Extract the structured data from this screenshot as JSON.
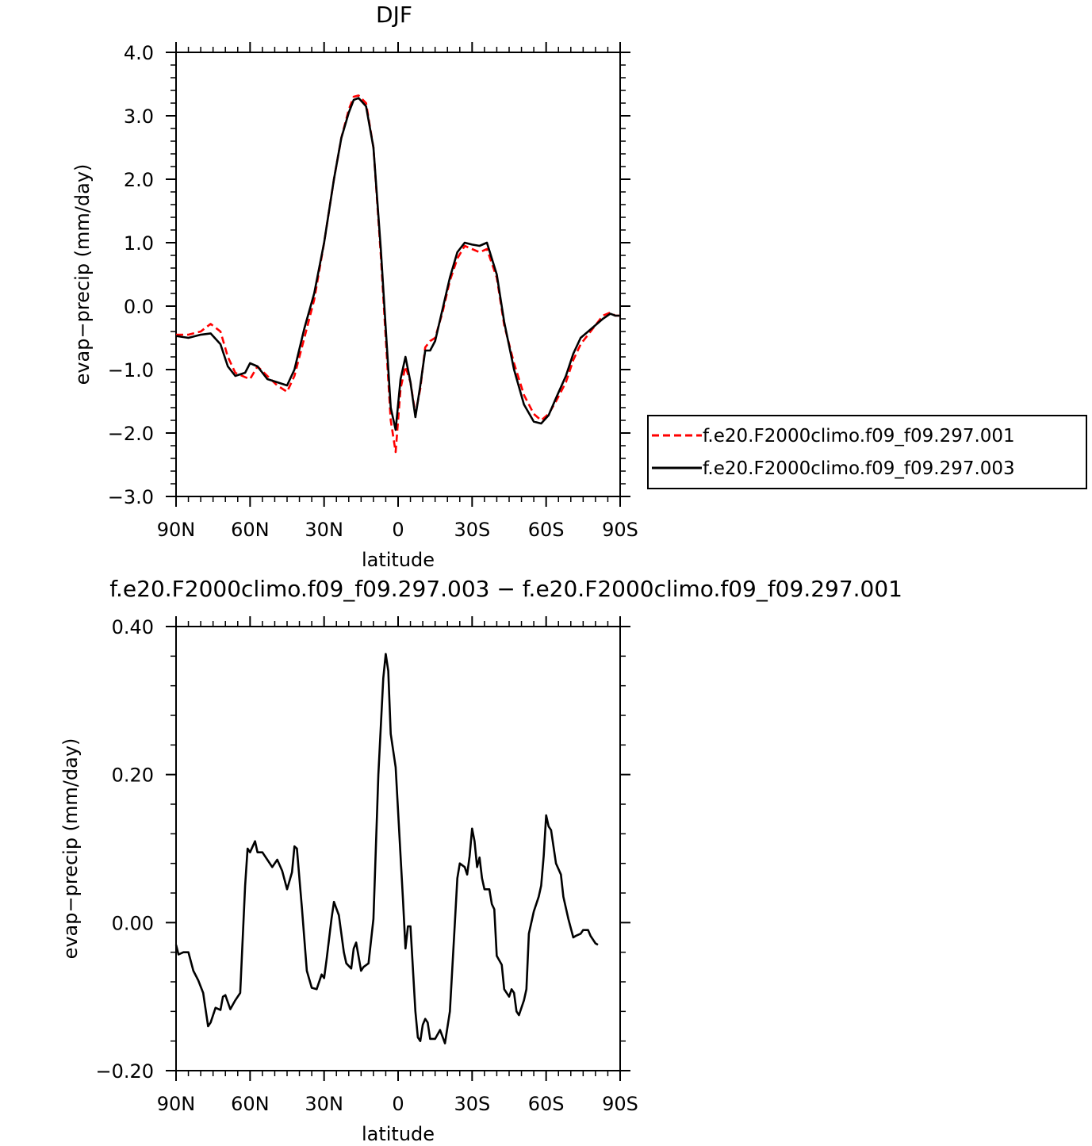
{
  "chart_data": [
    {
      "type": "line",
      "title": "DJF",
      "xlabel": "latitude",
      "ylabel": "evap−precip (mm/day)",
      "xlim": [
        90,
        -90
      ],
      "ylim": [
        -3.0,
        4.0
      ],
      "x_ticks": [
        90,
        60,
        30,
        0,
        -30,
        -60,
        -90
      ],
      "x_tick_labels": [
        "90N",
        "60N",
        "30N",
        "0",
        "30S",
        "60S",
        "90S"
      ],
      "y_ticks": [
        -3.0,
        -2.0,
        -1.0,
        0.0,
        1.0,
        2.0,
        3.0,
        4.0
      ],
      "y_tick_labels": [
        "−3.0",
        "−2.0",
        "−1.0",
        "0.0",
        "1.0",
        "2.0",
        "3.0",
        "4.0"
      ],
      "legend_position": "right",
      "series": [
        {
          "name": "f.e20.F2000climo.f09_f09.297.001",
          "color": "#ff0000",
          "dash": "dashed",
          "points": [
            [
              90,
              -0.45
            ],
            [
              85,
              -0.45
            ],
            [
              80,
              -0.4
            ],
            [
              76,
              -0.28
            ],
            [
              72,
              -0.4
            ],
            [
              69,
              -0.8
            ],
            [
              66,
              -1.05
            ],
            [
              62,
              -1.12
            ],
            [
              60,
              -1.15
            ],
            [
              57,
              -0.95
            ],
            [
              53,
              -1.1
            ],
            [
              49,
              -1.25
            ],
            [
              45,
              -1.35
            ],
            [
              42,
              -1.1
            ],
            [
              38,
              -0.5
            ],
            [
              34,
              0.1
            ],
            [
              30,
              1.0
            ],
            [
              26,
              2.0
            ],
            [
              23,
              2.65
            ],
            [
              20,
              3.1
            ],
            [
              18,
              3.3
            ],
            [
              16,
              3.32
            ],
            [
              13,
              3.2
            ],
            [
              10,
              2.5
            ],
            [
              7,
              0.8
            ],
            [
              5,
              -0.5
            ],
            [
              3,
              -1.8
            ],
            [
              1,
              -2.3
            ],
            [
              -1,
              -1.3
            ],
            [
              -3,
              -0.95
            ],
            [
              -5,
              -1.2
            ],
            [
              -7,
              -1.7
            ],
            [
              -9,
              -1.3
            ],
            [
              -11,
              -0.65
            ],
            [
              -13,
              -0.55
            ],
            [
              -15,
              -0.5
            ],
            [
              -18,
              -0.1
            ],
            [
              -21,
              0.4
            ],
            [
              -24,
              0.75
            ],
            [
              -27,
              0.95
            ],
            [
              -30,
              0.9
            ],
            [
              -33,
              0.85
            ],
            [
              -36,
              0.9
            ],
            [
              -40,
              0.45
            ],
            [
              -43,
              -0.3
            ],
            [
              -47,
              -0.9
            ],
            [
              -51,
              -1.4
            ],
            [
              -55,
              -1.7
            ],
            [
              -58,
              -1.8
            ],
            [
              -61,
              -1.7
            ],
            [
              -64,
              -1.5
            ],
            [
              -68,
              -1.2
            ],
            [
              -71,
              -0.85
            ],
            [
              -74,
              -0.6
            ],
            [
              -77,
              -0.45
            ],
            [
              -80,
              -0.3
            ],
            [
              -83,
              -0.15
            ],
            [
              -86,
              -0.1
            ],
            [
              -88,
              -0.15
            ],
            [
              -90,
              -0.15
            ]
          ]
        },
        {
          "name": "f.e20.F2000climo.f09_f09.297.003",
          "color": "#000000",
          "dash": "solid",
          "points": [
            [
              90,
              -0.47
            ],
            [
              85,
              -0.5
            ],
            [
              80,
              -0.45
            ],
            [
              76,
              -0.43
            ],
            [
              72,
              -0.6
            ],
            [
              69,
              -0.95
            ],
            [
              66,
              -1.1
            ],
            [
              62,
              -1.05
            ],
            [
              60,
              -0.9
            ],
            [
              57,
              -0.95
            ],
            [
              53,
              -1.15
            ],
            [
              49,
              -1.2
            ],
            [
              45,
              -1.25
            ],
            [
              42,
              -1.0
            ],
            [
              38,
              -0.35
            ],
            [
              34,
              0.2
            ],
            [
              30,
              1.0
            ],
            [
              26,
              2.0
            ],
            [
              23,
              2.65
            ],
            [
              20,
              3.05
            ],
            [
              18,
              3.25
            ],
            [
              16,
              3.28
            ],
            [
              13,
              3.15
            ],
            [
              10,
              2.5
            ],
            [
              7,
              0.9
            ],
            [
              5,
              -0.35
            ],
            [
              3,
              -1.6
            ],
            [
              1,
              -1.95
            ],
            [
              -1,
              -1.15
            ],
            [
              -3,
              -0.8
            ],
            [
              -5,
              -1.2
            ],
            [
              -7,
              -1.75
            ],
            [
              -9,
              -1.25
            ],
            [
              -11,
              -0.7
            ],
            [
              -13,
              -0.7
            ],
            [
              -15,
              -0.55
            ],
            [
              -18,
              -0.05
            ],
            [
              -21,
              0.45
            ],
            [
              -24,
              0.85
            ],
            [
              -27,
              1.0
            ],
            [
              -30,
              0.97
            ],
            [
              -33,
              0.95
            ],
            [
              -36,
              1.0
            ],
            [
              -40,
              0.5
            ],
            [
              -43,
              -0.25
            ],
            [
              -47,
              -1.0
            ],
            [
              -51,
              -1.55
            ],
            [
              -55,
              -1.82
            ],
            [
              -58,
              -1.85
            ],
            [
              -61,
              -1.72
            ],
            [
              -64,
              -1.45
            ],
            [
              -68,
              -1.1
            ],
            [
              -71,
              -0.75
            ],
            [
              -74,
              -0.5
            ],
            [
              -77,
              -0.4
            ],
            [
              -80,
              -0.3
            ],
            [
              -83,
              -0.2
            ],
            [
              -86,
              -0.12
            ],
            [
              -88,
              -0.15
            ],
            [
              -90,
              -0.15
            ]
          ]
        }
      ]
    },
    {
      "type": "line",
      "title": "f.e20.F2000climo.f09_f09.297.003 − f.e20.F2000climo.f09_f09.297.001",
      "xlabel": "latitude",
      "ylabel": "evap−precip (mm/day)",
      "xlim": [
        90,
        -90
      ],
      "ylim": [
        -0.2,
        0.4
      ],
      "x_ticks": [
        90,
        60,
        30,
        0,
        -30,
        -60,
        -90
      ],
      "x_tick_labels": [
        "90N",
        "60N",
        "30N",
        "0",
        "30S",
        "60S",
        "90S"
      ],
      "y_ticks": [
        -0.2,
        0.0,
        0.2,
        0.4
      ],
      "y_tick_labels": [
        "−0.20",
        "0.00",
        "0.20",
        "0.40"
      ],
      "series": [
        {
          "color": "#000000",
          "dash": "solid",
          "points": [
            [
              90,
              -0.03
            ],
            [
              89,
              -0.043
            ],
            [
              87,
              -0.04
            ],
            [
              85,
              -0.04
            ],
            [
              83,
              -0.065
            ],
            [
              81,
              -0.078
            ],
            [
              79,
              -0.095
            ],
            [
              77,
              -0.14
            ],
            [
              76,
              -0.135
            ],
            [
              74,
              -0.115
            ],
            [
              72,
              -0.118
            ],
            [
              71,
              -0.1
            ],
            [
              70,
              -0.098
            ],
            [
              68,
              -0.117
            ],
            [
              66,
              -0.105
            ],
            [
              64,
              -0.095
            ],
            [
              62,
              0.05
            ],
            [
              61,
              0.1
            ],
            [
              60,
              0.095
            ],
            [
              58,
              0.11
            ],
            [
              57,
              0.095
            ],
            [
              55,
              0.095
            ],
            [
              53,
              0.085
            ],
            [
              51,
              0.075
            ],
            [
              49,
              0.085
            ],
            [
              47,
              0.07
            ],
            [
              45,
              0.045
            ],
            [
              43,
              0.068
            ],
            [
              42,
              0.103
            ],
            [
              41,
              0.1
            ],
            [
              39,
              0.02
            ],
            [
              37,
              -0.065
            ],
            [
              35,
              -0.088
            ],
            [
              33,
              -0.09
            ],
            [
              31,
              -0.07
            ],
            [
              30,
              -0.075
            ],
            [
              29,
              -0.05
            ],
            [
              27,
              0.005
            ],
            [
              26,
              0.028
            ],
            [
              24,
              0.01
            ],
            [
              22,
              -0.04
            ],
            [
              21,
              -0.055
            ],
            [
              19,
              -0.062
            ],
            [
              18,
              -0.035
            ],
            [
              17,
              -0.027
            ],
            [
              15,
              -0.065
            ],
            [
              14,
              -0.06
            ],
            [
              12,
              -0.055
            ],
            [
              10,
              0.005
            ],
            [
              8,
              0.2
            ],
            [
              6,
              0.33
            ],
            [
              5,
              0.363
            ],
            [
              4,
              0.34
            ],
            [
              3,
              0.255
            ],
            [
              1,
              0.21
            ],
            [
              0,
              0.15
            ],
            [
              -2,
              0.03
            ],
            [
              -3,
              -0.035
            ],
            [
              -4,
              -0.005
            ],
            [
              -5,
              -0.005
            ],
            [
              -7,
              -0.12
            ],
            [
              -8,
              -0.155
            ],
            [
              -9,
              -0.16
            ],
            [
              -10,
              -0.138
            ],
            [
              -11,
              -0.13
            ],
            [
              -12,
              -0.135
            ],
            [
              -13,
              -0.157
            ],
            [
              -15,
              -0.157
            ],
            [
              -17,
              -0.145
            ],
            [
              -19,
              -0.163
            ],
            [
              -21,
              -0.12
            ],
            [
              -23,
              0.0
            ],
            [
              -24,
              0.06
            ],
            [
              -25,
              0.08
            ],
            [
              -27,
              0.075
            ],
            [
              -28,
              0.065
            ],
            [
              -29,
              0.09
            ],
            [
              -30,
              0.127
            ],
            [
              -31,
              0.11
            ],
            [
              -32,
              0.075
            ],
            [
              -33,
              0.088
            ],
            [
              -34,
              0.06
            ],
            [
              -35,
              0.045
            ],
            [
              -37,
              0.045
            ],
            [
              -38,
              0.025
            ],
            [
              -39,
              0.018
            ],
            [
              -40,
              -0.045
            ],
            [
              -42,
              -0.057
            ],
            [
              -43,
              -0.09
            ],
            [
              -45,
              -0.1
            ],
            [
              -46,
              -0.09
            ],
            [
              -47,
              -0.095
            ],
            [
              -48,
              -0.12
            ],
            [
              -49,
              -0.125
            ],
            [
              -51,
              -0.105
            ],
            [
              -52,
              -0.09
            ],
            [
              -53,
              -0.015
            ],
            [
              -55,
              0.015
            ],
            [
              -57,
              0.035
            ],
            [
              -58,
              0.05
            ],
            [
              -59,
              0.09
            ],
            [
              -60,
              0.145
            ],
            [
              -61,
              0.13
            ],
            [
              -62,
              0.125
            ],
            [
              -64,
              0.08
            ],
            [
              -66,
              0.065
            ],
            [
              -67,
              0.035
            ],
            [
              -69,
              0.005
            ],
            [
              -71,
              -0.02
            ],
            [
              -72,
              -0.018
            ],
            [
              -74,
              -0.015
            ],
            [
              -75,
              -0.01
            ],
            [
              -77,
              -0.01
            ],
            [
              -78,
              -0.018
            ],
            [
              -80,
              -0.028
            ],
            [
              -81,
              -0.03
            ]
          ]
        }
      ]
    }
  ]
}
